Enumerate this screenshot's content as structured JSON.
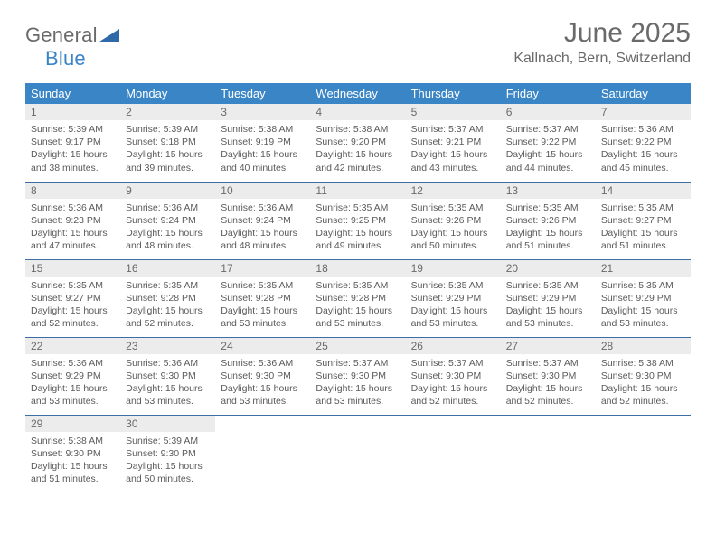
{
  "brand": {
    "text_general": "General",
    "text_blue": "Blue",
    "triangle_color": "#2f6aa8"
  },
  "header": {
    "title": "June 2025",
    "location": "Kallnach, Bern, Switzerland"
  },
  "colors": {
    "header_row": "#3a85c6",
    "row_border": "#3a6ea5",
    "daynum_bg": "#ececec",
    "text": "#5a5a5a"
  },
  "day_names": [
    "Sunday",
    "Monday",
    "Tuesday",
    "Wednesday",
    "Thursday",
    "Friday",
    "Saturday"
  ],
  "weeks": [
    [
      {
        "n": "1",
        "sr": "Sunrise: 5:39 AM",
        "ss": "Sunset: 9:17 PM",
        "d1": "Daylight: 15 hours",
        "d2": "and 38 minutes."
      },
      {
        "n": "2",
        "sr": "Sunrise: 5:39 AM",
        "ss": "Sunset: 9:18 PM",
        "d1": "Daylight: 15 hours",
        "d2": "and 39 minutes."
      },
      {
        "n": "3",
        "sr": "Sunrise: 5:38 AM",
        "ss": "Sunset: 9:19 PM",
        "d1": "Daylight: 15 hours",
        "d2": "and 40 minutes."
      },
      {
        "n": "4",
        "sr": "Sunrise: 5:38 AM",
        "ss": "Sunset: 9:20 PM",
        "d1": "Daylight: 15 hours",
        "d2": "and 42 minutes."
      },
      {
        "n": "5",
        "sr": "Sunrise: 5:37 AM",
        "ss": "Sunset: 9:21 PM",
        "d1": "Daylight: 15 hours",
        "d2": "and 43 minutes."
      },
      {
        "n": "6",
        "sr": "Sunrise: 5:37 AM",
        "ss": "Sunset: 9:22 PM",
        "d1": "Daylight: 15 hours",
        "d2": "and 44 minutes."
      },
      {
        "n": "7",
        "sr": "Sunrise: 5:36 AM",
        "ss": "Sunset: 9:22 PM",
        "d1": "Daylight: 15 hours",
        "d2": "and 45 minutes."
      }
    ],
    [
      {
        "n": "8",
        "sr": "Sunrise: 5:36 AM",
        "ss": "Sunset: 9:23 PM",
        "d1": "Daylight: 15 hours",
        "d2": "and 47 minutes."
      },
      {
        "n": "9",
        "sr": "Sunrise: 5:36 AM",
        "ss": "Sunset: 9:24 PM",
        "d1": "Daylight: 15 hours",
        "d2": "and 48 minutes."
      },
      {
        "n": "10",
        "sr": "Sunrise: 5:36 AM",
        "ss": "Sunset: 9:24 PM",
        "d1": "Daylight: 15 hours",
        "d2": "and 48 minutes."
      },
      {
        "n": "11",
        "sr": "Sunrise: 5:35 AM",
        "ss": "Sunset: 9:25 PM",
        "d1": "Daylight: 15 hours",
        "d2": "and 49 minutes."
      },
      {
        "n": "12",
        "sr": "Sunrise: 5:35 AM",
        "ss": "Sunset: 9:26 PM",
        "d1": "Daylight: 15 hours",
        "d2": "and 50 minutes."
      },
      {
        "n": "13",
        "sr": "Sunrise: 5:35 AM",
        "ss": "Sunset: 9:26 PM",
        "d1": "Daylight: 15 hours",
        "d2": "and 51 minutes."
      },
      {
        "n": "14",
        "sr": "Sunrise: 5:35 AM",
        "ss": "Sunset: 9:27 PM",
        "d1": "Daylight: 15 hours",
        "d2": "and 51 minutes."
      }
    ],
    [
      {
        "n": "15",
        "sr": "Sunrise: 5:35 AM",
        "ss": "Sunset: 9:27 PM",
        "d1": "Daylight: 15 hours",
        "d2": "and 52 minutes."
      },
      {
        "n": "16",
        "sr": "Sunrise: 5:35 AM",
        "ss": "Sunset: 9:28 PM",
        "d1": "Daylight: 15 hours",
        "d2": "and 52 minutes."
      },
      {
        "n": "17",
        "sr": "Sunrise: 5:35 AM",
        "ss": "Sunset: 9:28 PM",
        "d1": "Daylight: 15 hours",
        "d2": "and 53 minutes."
      },
      {
        "n": "18",
        "sr": "Sunrise: 5:35 AM",
        "ss": "Sunset: 9:28 PM",
        "d1": "Daylight: 15 hours",
        "d2": "and 53 minutes."
      },
      {
        "n": "19",
        "sr": "Sunrise: 5:35 AM",
        "ss": "Sunset: 9:29 PM",
        "d1": "Daylight: 15 hours",
        "d2": "and 53 minutes."
      },
      {
        "n": "20",
        "sr": "Sunrise: 5:35 AM",
        "ss": "Sunset: 9:29 PM",
        "d1": "Daylight: 15 hours",
        "d2": "and 53 minutes."
      },
      {
        "n": "21",
        "sr": "Sunrise: 5:35 AM",
        "ss": "Sunset: 9:29 PM",
        "d1": "Daylight: 15 hours",
        "d2": "and 53 minutes."
      }
    ],
    [
      {
        "n": "22",
        "sr": "Sunrise: 5:36 AM",
        "ss": "Sunset: 9:29 PM",
        "d1": "Daylight: 15 hours",
        "d2": "and 53 minutes."
      },
      {
        "n": "23",
        "sr": "Sunrise: 5:36 AM",
        "ss": "Sunset: 9:30 PM",
        "d1": "Daylight: 15 hours",
        "d2": "and 53 minutes."
      },
      {
        "n": "24",
        "sr": "Sunrise: 5:36 AM",
        "ss": "Sunset: 9:30 PM",
        "d1": "Daylight: 15 hours",
        "d2": "and 53 minutes."
      },
      {
        "n": "25",
        "sr": "Sunrise: 5:37 AM",
        "ss": "Sunset: 9:30 PM",
        "d1": "Daylight: 15 hours",
        "d2": "and 53 minutes."
      },
      {
        "n": "26",
        "sr": "Sunrise: 5:37 AM",
        "ss": "Sunset: 9:30 PM",
        "d1": "Daylight: 15 hours",
        "d2": "and 52 minutes."
      },
      {
        "n": "27",
        "sr": "Sunrise: 5:37 AM",
        "ss": "Sunset: 9:30 PM",
        "d1": "Daylight: 15 hours",
        "d2": "and 52 minutes."
      },
      {
        "n": "28",
        "sr": "Sunrise: 5:38 AM",
        "ss": "Sunset: 9:30 PM",
        "d1": "Daylight: 15 hours",
        "d2": "and 52 minutes."
      }
    ],
    [
      {
        "n": "29",
        "sr": "Sunrise: 5:38 AM",
        "ss": "Sunset: 9:30 PM",
        "d1": "Daylight: 15 hours",
        "d2": "and 51 minutes."
      },
      {
        "n": "30",
        "sr": "Sunrise: 5:39 AM",
        "ss": "Sunset: 9:30 PM",
        "d1": "Daylight: 15 hours",
        "d2": "and 50 minutes."
      },
      null,
      null,
      null,
      null,
      null
    ]
  ]
}
